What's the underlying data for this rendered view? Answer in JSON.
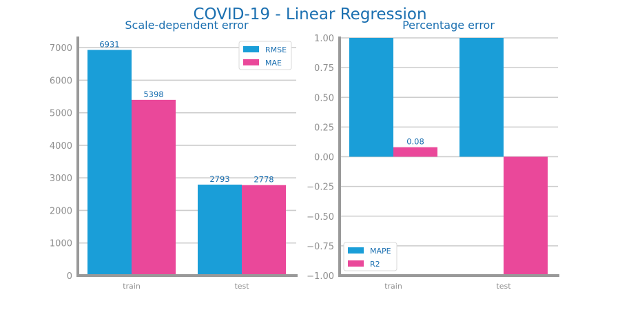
{
  "suptitle": "COVID-19 - Linear Regression",
  "colors": {
    "text": "#1a6fb0",
    "tick": "#8f8f8f",
    "grid": "#cccccc",
    "spine": "#999999"
  },
  "chart_data": [
    {
      "type": "bar",
      "title": "Scale-dependent error",
      "xlabel": "",
      "ylabel": "",
      "categories": [
        "train",
        "test"
      ],
      "ylim": [
        0,
        7300
      ],
      "yticks": [
        0,
        1000,
        2000,
        3000,
        4000,
        5000,
        6000,
        7000
      ],
      "ytick_labels": [
        "0",
        "1000",
        "2000",
        "3000",
        "4000",
        "5000",
        "6000",
        "7000"
      ],
      "grid": true,
      "legend_position": "top-right",
      "series": [
        {
          "name": "RMSE",
          "color": "#1a9ed8",
          "values": [
            6931,
            2793
          ],
          "data_labels": [
            "6931",
            "2793"
          ]
        },
        {
          "name": "MAE",
          "color": "#ea489a",
          "values": [
            5398,
            2778
          ],
          "data_labels": [
            "5398",
            "2778"
          ]
        }
      ]
    },
    {
      "type": "bar",
      "title": "Percentage error",
      "xlabel": "",
      "ylabel": "",
      "categories": [
        "train",
        "test"
      ],
      "ylim": [
        -1.0,
        1.0
      ],
      "yticks": [
        -1.0,
        -0.75,
        -0.5,
        -0.25,
        0.0,
        0.25,
        0.5,
        0.75,
        1.0
      ],
      "ytick_labels": [
        "−1.00",
        "−0.75",
        "−0.50",
        "−0.25",
        "0.00",
        "0.25",
        "0.50",
        "0.75",
        "1.00"
      ],
      "grid": true,
      "legend_position": "bottom-left",
      "series": [
        {
          "name": "MAPE",
          "color": "#1a9ed8",
          "values": [
            1.0,
            1.0
          ],
          "data_labels": [
            "",
            ""
          ]
        },
        {
          "name": "R2",
          "color": "#ea489a",
          "values": [
            0.08,
            -1.0
          ],
          "data_labels": [
            "0.08",
            ""
          ]
        }
      ]
    }
  ]
}
